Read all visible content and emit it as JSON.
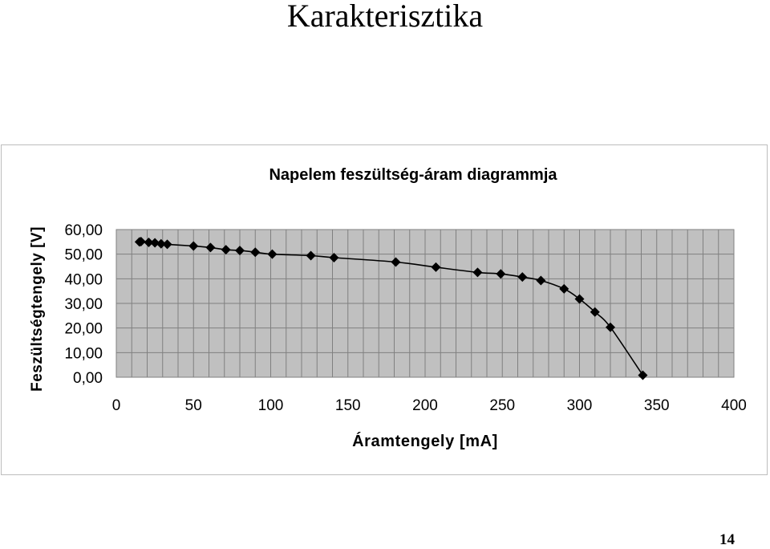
{
  "document": {
    "title": "Karakterisztika",
    "page_number": "14"
  },
  "chart_data": {
    "type": "scatter",
    "title": "Napelem feszültség-áram diagrammja",
    "xlabel": "Áramtengely [mA]",
    "ylabel": "Feszültségtengely [V]",
    "xlim": [
      0,
      400
    ],
    "ylim": [
      0,
      60
    ],
    "x_ticks": [
      "0",
      "50",
      "100",
      "150",
      "200",
      "250",
      "300",
      "350",
      "400"
    ],
    "y_ticks": [
      "0,00",
      "10,00",
      "20,00",
      "30,00",
      "40,00",
      "50,00",
      "60,00"
    ],
    "grid": true,
    "marker": "diamond",
    "line_smoothed": true,
    "colors": {
      "plot_background": "#c0c0c0",
      "grid": "#808080",
      "series": "#000000"
    },
    "series": [
      {
        "x": [
          15,
          16,
          21,
          25,
          29,
          33,
          50,
          61,
          71,
          80,
          90,
          101,
          126,
          141,
          181,
          207,
          234,
          249,
          263,
          275,
          290,
          300,
          310,
          320,
          341
        ],
        "y": [
          55.0,
          55.1,
          54.8,
          54.6,
          54.2,
          54.0,
          53.3,
          52.7,
          51.8,
          51.5,
          50.8,
          50.0,
          49.4,
          48.6,
          46.8,
          44.7,
          42.6,
          42.0,
          40.7,
          39.3,
          35.9,
          31.8,
          26.5,
          20.3,
          0.8
        ]
      }
    ]
  }
}
